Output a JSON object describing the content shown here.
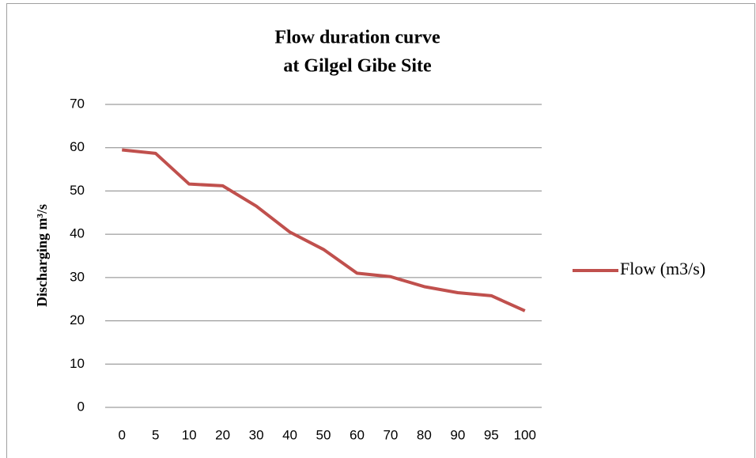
{
  "chart_data": {
    "type": "line",
    "title": [
      "Flow duration curve",
      "at Gilgel Gibe Site"
    ],
    "y_label": "Discharging m³/s",
    "categories": [
      "0",
      "5",
      "10",
      "20",
      "30",
      "40",
      "50",
      "60",
      "70",
      "80",
      "90",
      "95",
      "100"
    ],
    "series": [
      {
        "name": "Flow (m3/s)",
        "color": "#c0504d",
        "values": [
          59.5,
          58.7,
          51.6,
          51.2,
          46.5,
          40.5,
          36.5,
          31,
          30.2,
          27.9,
          26.5,
          25.8,
          22.3
        ]
      }
    ],
    "ylim": [
      0,
      70
    ],
    "yticks": [
      0,
      10,
      20,
      30,
      40,
      50,
      60,
      70
    ],
    "grid": true,
    "legend": "right"
  }
}
